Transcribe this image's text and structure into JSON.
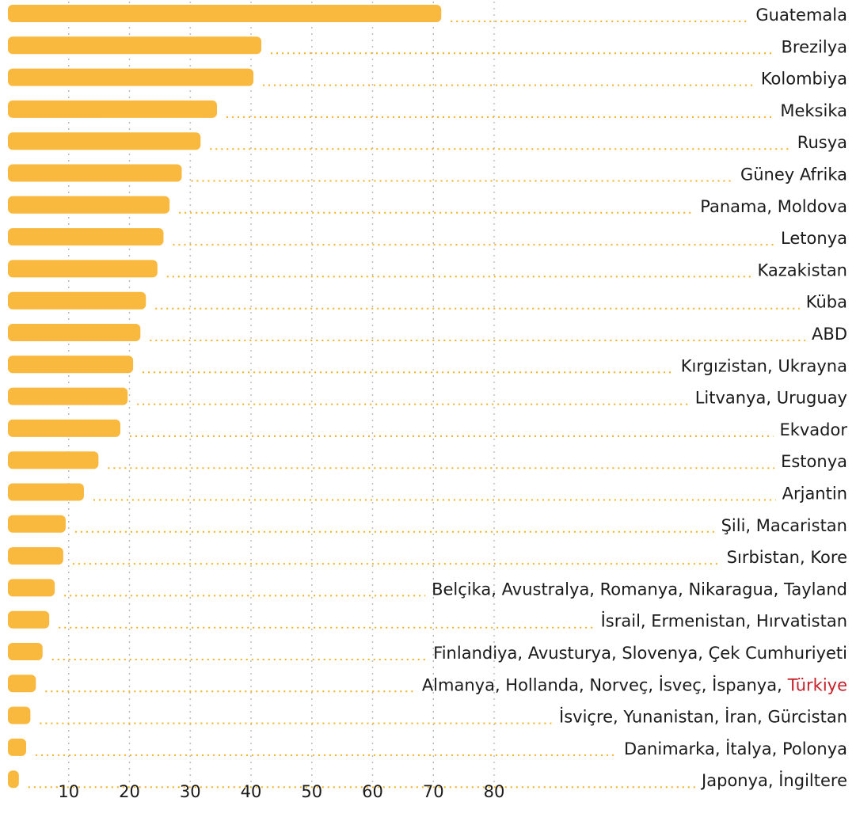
{
  "chart_data": {
    "type": "hbar",
    "categories": [
      "Guatemala",
      "Brezilya",
      "Kolombiya",
      "Meksika",
      "Rusya",
      "Güney Afrika",
      "Panama, Moldova",
      "Letonya",
      "Kazakistan",
      "Küba",
      "ABD",
      "Kırgızistan, Ukrayna",
      "Litvanya, Uruguay",
      "Ekvador",
      "Estonya",
      "Arjantin",
      "Şili, Macaristan",
      "Sırbistan, Kore",
      "Belçika, Avustralya, Romanya, Nikaragua, Tayland",
      "İsrail, Ermenistan, Hırvatistan",
      "Finlandiya, Avusturya, Slovenya, Çek Cumhuriyeti",
      "Almanya, Hollanda, Norveç, İsveç, İspanya,",
      "İsviçre, Yunanistan, İran, Gürcistan",
      "Danimarka, İtalya, Polonya",
      "Japonya, İngiltere"
    ],
    "values": [
      71.3,
      41.7,
      40.4,
      34.4,
      31.7,
      28.6,
      26.6,
      25.6,
      24.6,
      22.7,
      21.8,
      20.6,
      19.7,
      18.5,
      14.9,
      12.5,
      9.5,
      9.1,
      7.7,
      6.8,
      5.7,
      4.6,
      3.7,
      3.0,
      1.8
    ],
    "highlight": {
      "index": 21,
      "text": "Türkiye",
      "color": "#c8202a"
    },
    "color": "#f9b83e",
    "xlim": [
      0,
      80
    ],
    "xticks": [
      10,
      20,
      30,
      40,
      50,
      60,
      70,
      80
    ],
    "grid": true
  }
}
